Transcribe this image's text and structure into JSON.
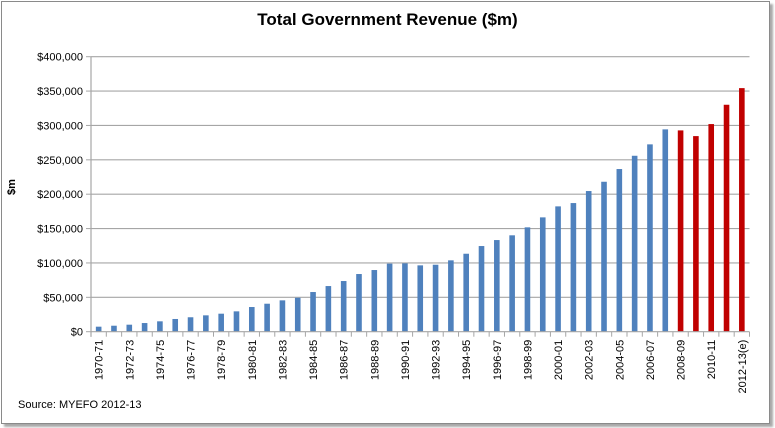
{
  "chart_data": {
    "type": "bar",
    "title": "Total Government Revenue ($m)",
    "xlabel": "",
    "ylabel": "$m",
    "ylim": [
      0,
      400000
    ],
    "yticks": [
      0,
      50000,
      100000,
      150000,
      200000,
      250000,
      300000,
      350000,
      400000
    ],
    "ytick_labels": [
      "$0",
      "$50,000",
      "$100,000",
      "$150,000",
      "$200,000",
      "$250,000",
      "$300,000",
      "$350,000",
      "$400,000"
    ],
    "grid": true,
    "legend": "none",
    "categories": [
      "1970-71",
      "1971-72",
      "1972-73",
      "1973-74",
      "1974-75",
      "1975-76",
      "1976-77",
      "1977-78",
      "1978-79",
      "1979-80",
      "1980-81",
      "1981-82",
      "1982-83",
      "1983-84",
      "1984-85",
      "1985-86",
      "1986-87",
      "1987-88",
      "1988-89",
      "1989-90",
      "1990-91",
      "1991-92",
      "1992-93",
      "1993-94",
      "1994-95",
      "1995-96",
      "1996-97",
      "1997-98",
      "1998-99",
      "1999-00",
      "2000-01",
      "2001-02",
      "2002-03",
      "2003-04",
      "2004-05",
      "2005-06",
      "2006-07",
      "2007-08",
      "2008-09",
      "2009-10",
      "2010-11",
      "2011-12",
      "2012-13(e)"
    ],
    "shown_category_labels": [
      "1970-71",
      "1972-73",
      "1974-75",
      "1976-77",
      "1978-79",
      "1980-81",
      "1982-83",
      "1984-85",
      "1986-87",
      "1988-89",
      "1990-91",
      "1992-93",
      "1994-95",
      "1996-97",
      "1998-99",
      "2000-01",
      "2002-03",
      "2004-05",
      "2006-07",
      "2008-09",
      "2010-11",
      "2012-13(e)"
    ],
    "values": [
      7300,
      8700,
      10200,
      12600,
      15100,
      18500,
      21000,
      23800,
      26200,
      29600,
      35900,
      40700,
      45600,
      49400,
      57700,
      66400,
      73700,
      83900,
      89700,
      99000,
      99400,
      96500,
      97400,
      103800,
      113400,
      124600,
      133300,
      140200,
      151800,
      166300,
      182300,
      187100,
      204600,
      218100,
      236600,
      255900,
      272500,
      294300,
      292800,
      284500,
      302000,
      330100,
      354300
    ],
    "bar_colors": {
      "historical": "#4F81BD",
      "recent": "#C00000"
    },
    "recent_from_index": 38,
    "source": "Source: MYEFO 2012-13"
  }
}
